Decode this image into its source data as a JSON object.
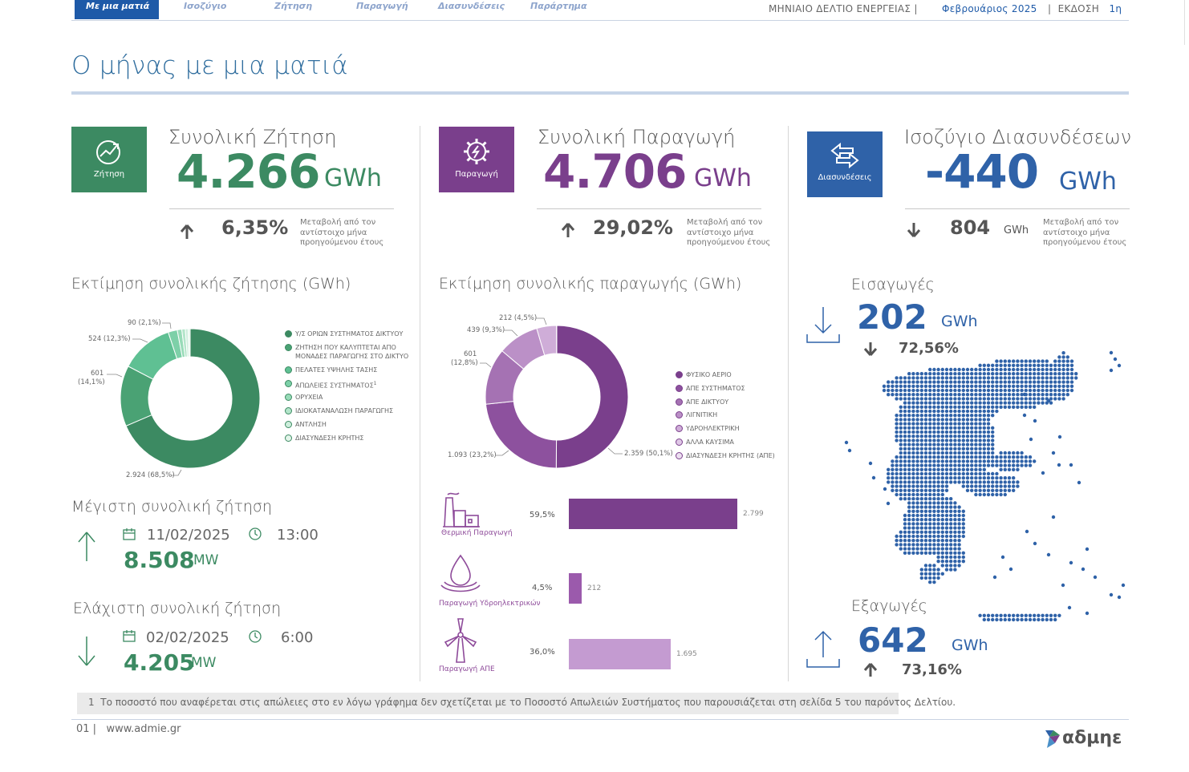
{
  "nav": {
    "tabs": [
      "Με μια ματιά",
      "Ισοζύγιο",
      "Ζήτηση",
      "Παραγωγή",
      "Διασυνδέσεις",
      "Παράρτημα"
    ],
    "report_title": "ΜΗΝΙΑΙΟ ΔΕΛΤΙΟ  ΕΝΕΡΓΕΙΑΣ",
    "month": "Φεβρουάριος 2025",
    "edition_label": "ΕΚΔΟΣΗ",
    "edition": "1η"
  },
  "page_title": "Ο μήνας με μια ματιά",
  "demand": {
    "box_label": "Ζήτηση",
    "title": "Συνολική Ζήτηση",
    "value": "4.266",
    "unit": "GWh",
    "change": "6,35%",
    "change_note": "Μεταβολή από τον αντίστοιχο μήνα προηγούμενου έτους",
    "color": "#3c8a62"
  },
  "production": {
    "box_label": "Παραγωγή",
    "title": "Συνολική Παραγωγή",
    "value": "4.706",
    "unit": "GWh",
    "change": "29,02%",
    "change_note": "Μεταβολή από τον αντίστοιχο μήνα προηγούμενου έτους",
    "color": "#7a3f8c"
  },
  "interconnections": {
    "box_label": "Διασυνδέσεις",
    "title": "Ισοζύγιο Διασυνδέσεων",
    "value": "-440",
    "unit": "GWh",
    "change": "804",
    "change_unit": "GWh",
    "change_note": "Μεταβολή από τον αντίστοιχο μήνα προηγούμενου έτους",
    "color": "#2f62a8"
  },
  "demand_chart": {
    "title": "Εκτίμηση συνολικής ζήτησης (GWh)",
    "callouts": [
      "90 (2,1%)",
      "524 (12,3%)",
      "601",
      "(14,1%)",
      "2.924 (68,5%)"
    ],
    "legend": [
      {
        "label": "Υ/Σ ΟΡΙΩΝ ΣΥΣΤΗΜΑΤΟΣ ΔΙΚΤΥΟΥ",
        "color": "#3c8a62"
      },
      {
        "label": "ΖΗΤΗΣΗ ΠΟΥ ΚΑΛΥΠΤΕΤΑΙ ΑΠΟ",
        "label2": "ΜΟΝΑΔΕΣ ΠΑΡΑΓΩΓΗΣ ΣΤΟ ΔΙΚΤΥΟ",
        "color": "#4aa274"
      },
      {
        "label": "ΠΕΛΑΤΕΣ ΥΨΗΛΗΣ ΤΑΣΗΣ",
        "color": "#5fc093"
      },
      {
        "label": "ΑΠΩΛΕΙΕΣ ΣΥΣΤΗΜΑΤΟΣ",
        "sup": "1",
        "color": "#7dd0a8"
      },
      {
        "label": "ΟΡΥΧΕΙΑ",
        "color": "#98dbb8"
      },
      {
        "label": "ΙΔΙΟΚΑΤΑΝΑΛΩΣΗ ΠΑΡΑΓΩΓΗΣ",
        "color": "#b3e5ca"
      },
      {
        "label": "ΑΝΤΛΗΣΗ",
        "color": "#cdeedc"
      },
      {
        "label": "ΔΙΑΣΥΝΔΕΣΗ ΚΡΗΤΗΣ",
        "color": "#e3f5ea"
      }
    ]
  },
  "production_chart": {
    "title": "Εκτίμηση συνολικής παραγωγής (GWh)",
    "callouts": [
      "212 (4,5%)",
      "439 (9,3%)",
      "601",
      "(12,8%)",
      "1.093 (23,2%)",
      "2.359 (50,1%)"
    ],
    "legend": [
      {
        "label": "ΦΥΣΙΚΟ ΑΕΡΙΟ",
        "color": "#7a3f8c"
      },
      {
        "label": "ΑΠΕ ΣΥΣΤΗΜΑΤΟΣ",
        "color": "#8d519e"
      },
      {
        "label": "ΑΠΕ ΔΙΚΤΥΟΥ",
        "color": "#a572b3"
      },
      {
        "label": "ΛΙΓΝΙΤΙΚΗ",
        "color": "#bb90c7"
      },
      {
        "label": "ΥΔΡΟΗΛΕΚΤΡΙΚΗ",
        "color": "#cfadd8"
      },
      {
        "label": "ΑΛΛΑ ΚΑΥΣΙΜΑ",
        "color": "#dfc8e6"
      },
      {
        "label": "ΔΙΑΣΥΝΔΕΣΗ ΚΡΗΤΗΣ (ΑΠΕ)",
        "color": "#ecdff0"
      }
    ]
  },
  "chart_data": [
    {
      "type": "pie",
      "title": "Εκτίμηση συνολικής ζήτησης (GWh)",
      "categories": [
        "Υ/Σ ΟΡΙΩΝ ΣΥΣΤΗΜΑΤΟΣ ΔΙΚΤΥΟΥ",
        "ΖΗΤΗΣΗ ΠΟΥ ΚΑΛΥΠΤΕΤΑΙ ΑΠΟ ΜΟΝΑΔΕΣ ΠΑΡΑΓΩΓΗΣ ΣΤΟ ΔΙΚΤΥΟ",
        "ΠΕΛΑΤΕΣ ΥΨΗΛΗΣ ΤΑΣΗΣ",
        "ΑΠΩΛΕΙΕΣ ΣΥΣΤΗΜΑΤΟΣ",
        "ΟΡΥΧΕΙΑ",
        "ΙΔΙΟΚΑΤΑΝΑΛΩΣΗ ΠΑΡΑΓΩΓΗΣ",
        "ΑΝΤΛΗΣΗ",
        "ΔΙΑΣΥΝΔΕΣΗ ΚΡΗΤΗΣ"
      ],
      "values": [
        2924,
        601,
        524,
        90,
        45,
        35,
        27,
        20
      ],
      "colors": [
        "#3c8a62",
        "#4aa274",
        "#5fc093",
        "#7dd0a8",
        "#98dbb8",
        "#b3e5ca",
        "#cdeedc",
        "#e3f5ea"
      ]
    },
    {
      "type": "pie",
      "title": "Εκτίμηση συνολικής παραγωγής (GWh)",
      "categories": [
        "ΦΥΣΙΚΟ ΑΕΡΙΟ",
        "ΑΠΕ ΣΥΣΤΗΜΑΤΟΣ",
        "ΑΠΕ ΔΙΚΤΥΟΥ",
        "ΛΙΓΝΙΤΙΚΗ",
        "ΥΔΡΟΗΛΕΚΤΡΙΚΗ",
        "ΑΛΛΑ ΚΑΥΣΙΜΑ",
        "ΔΙΑΣΥΝΔΕΣΗ ΚΡΗΤΗΣ (ΑΠΕ)"
      ],
      "values": [
        2359,
        1093,
        601,
        439,
        212,
        1,
        1
      ],
      "colors": [
        "#7a3f8c",
        "#8d519e",
        "#a572b3",
        "#bb90c7",
        "#cfadd8",
        "#dfc8e6",
        "#ecdff0"
      ]
    },
    {
      "type": "bar",
      "categories": [
        "Θερμική Παραγωγή",
        "Παραγωγή Υδροηλεκτρικών",
        "Παραγωγή ΑΠΕ"
      ],
      "values": [
        2799,
        212,
        1695
      ],
      "percent_labels": [
        "59,5%",
        "4,5%",
        "36,0%"
      ],
      "value_labels": [
        "2.799",
        "212",
        "1.695"
      ],
      "colors": [
        "#7a3f8c",
        "#9b5aac",
        "#c49bd1"
      ]
    }
  ],
  "max_demand": {
    "title": "Μέγιστη συνολική ζήτηση",
    "date": "11/02/2025",
    "time": "13:00",
    "value": "8.508",
    "unit": "MW"
  },
  "min_demand": {
    "title": "Ελάχιστη συνολική ζήτηση",
    "date": "02/02/2025",
    "time": "6:00",
    "value": "4.205",
    "unit": "MW"
  },
  "bars": {
    "thermal_label": "Θερμική Παραγωγή",
    "hydro_label": "Παραγωγή Υδροηλεκτρικών",
    "res_label": "Παραγωγή ΑΠΕ"
  },
  "imports": {
    "title": "Εισαγωγές",
    "value": "202",
    "unit": "GWh",
    "change": "72,56%"
  },
  "exports": {
    "title": "Εξαγωγές",
    "value": "642",
    "unit": "GWh",
    "change": "73,16%"
  },
  "footnote": {
    "number": "1",
    "text": "Το ποσοστό που αναφέρεται στις απώλειες στο εν λόγω γράφημα δεν  σχετίζεται με το Ποσοστό Απωλειών Συστήματος που παρουσιάζεται στη σελίδα 5 του παρόντος Δελτίου."
  },
  "footer": {
    "page": "01",
    "site": "www.admie.gr",
    "logo": "αδμηε"
  }
}
